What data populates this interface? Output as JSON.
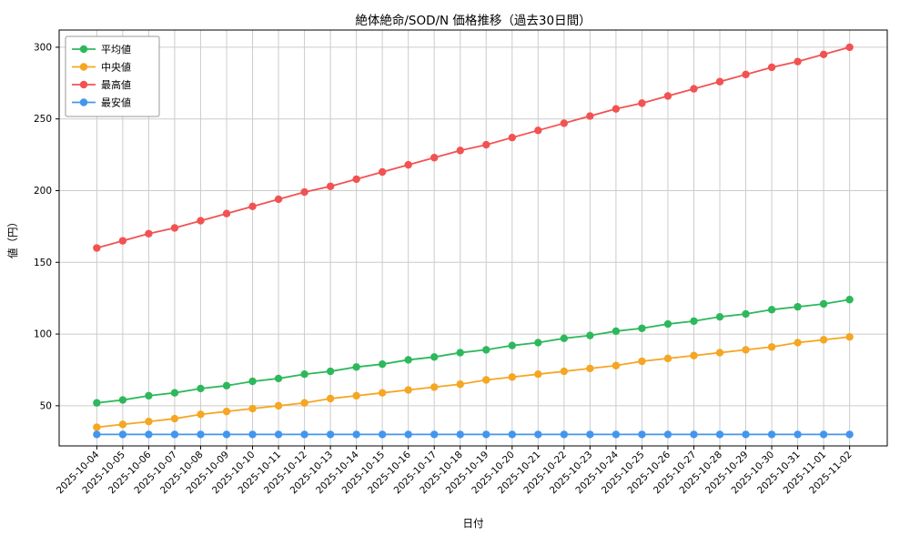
{
  "chart_data": {
    "type": "line",
    "title": "絶体絶命/SOD/N 価格推移（過去30日間）",
    "xlabel": "日付",
    "ylabel": "値（円）",
    "grid": true,
    "legend_position": "upper left",
    "background": "#ffffff",
    "ylim": [
      22,
      312
    ],
    "yticks": [
      50,
      100,
      150,
      200,
      250,
      300
    ],
    "x": [
      "2025-10-04",
      "2025-10-05",
      "2025-10-06",
      "2025-10-07",
      "2025-10-08",
      "2025-10-09",
      "2025-10-10",
      "2025-10-11",
      "2025-10-12",
      "2025-10-13",
      "2025-10-14",
      "2025-10-15",
      "2025-10-16",
      "2025-10-17",
      "2025-10-18",
      "2025-10-19",
      "2025-10-20",
      "2025-10-21",
      "2025-10-22",
      "2025-10-23",
      "2025-10-24",
      "2025-10-25",
      "2025-10-26",
      "2025-10-27",
      "2025-10-28",
      "2025-10-29",
      "2025-10-30",
      "2025-10-31",
      "2025-11-01",
      "2025-11-02"
    ],
    "series": [
      {
        "name": "平均値",
        "color": "#2eb85c",
        "values": [
          52,
          54,
          57,
          59,
          62,
          64,
          67,
          69,
          72,
          74,
          77,
          79,
          82,
          84,
          87,
          89,
          92,
          94,
          97,
          99,
          102,
          104,
          107,
          109,
          112,
          114,
          117,
          119,
          121,
          124
        ]
      },
      {
        "name": "中央値",
        "color": "#f5a623",
        "values": [
          35,
          37,
          39,
          41,
          44,
          46,
          48,
          50,
          52,
          55,
          57,
          59,
          61,
          63,
          65,
          68,
          70,
          72,
          74,
          76,
          78,
          81,
          83,
          85,
          87,
          89,
          91,
          94,
          96,
          98
        ]
      },
      {
        "name": "最高値",
        "color": "#f25252",
        "values": [
          160,
          165,
          170,
          174,
          179,
          184,
          189,
          194,
          199,
          203,
          208,
          213,
          218,
          223,
          228,
          232,
          237,
          242,
          247,
          252,
          257,
          261,
          266,
          271,
          276,
          281,
          286,
          290,
          295,
          300
        ]
      },
      {
        "name": "最安値",
        "color": "#4396ec",
        "values": [
          30,
          30,
          30,
          30,
          30,
          30,
          30,
          30,
          30,
          30,
          30,
          30,
          30,
          30,
          30,
          30,
          30,
          30,
          30,
          30,
          30,
          30,
          30,
          30,
          30,
          30,
          30,
          30,
          30,
          30
        ]
      }
    ]
  }
}
